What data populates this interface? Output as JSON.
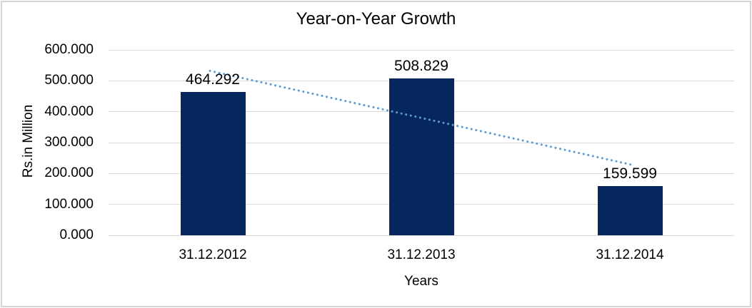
{
  "frame": {
    "background_color": "#ffffff",
    "border_color": "#d4d4d4"
  },
  "chart_data": {
    "type": "bar",
    "title": "Year-on-Year Growth",
    "xlabel": "Years",
    "ylabel": "Rs.in Million",
    "categories": [
      "31.12.2012",
      "31.12.2013",
      "31.12.2014"
    ],
    "values": [
      464.292,
      508.829,
      159.599
    ],
    "data_labels": [
      "464.292",
      "508.829",
      "159.599"
    ],
    "ylim": [
      0,
      600
    ],
    "ytick_values": [
      0,
      100,
      200,
      300,
      400,
      500,
      600
    ],
    "ytick_labels": [
      "0.000",
      "100.000",
      "200.000",
      "300.000",
      "400.000",
      "500.000",
      "600.000"
    ],
    "grid": true,
    "legend": false,
    "bar_color": "#06265e",
    "gridline_color": "#d9d9d9",
    "axis_text_color": "#000000",
    "trendline": {
      "type": "linear",
      "style": "dotted",
      "color": "#5b9bd5"
    }
  }
}
